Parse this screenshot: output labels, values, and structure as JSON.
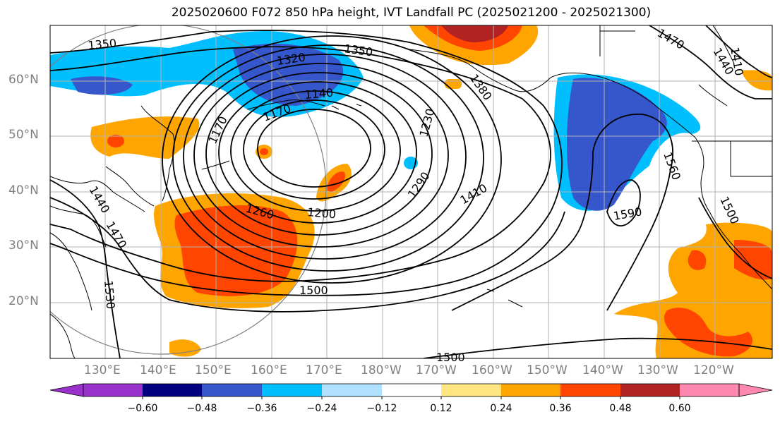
{
  "title": "2025020600 F072 850 hPa height, IVT Landfall PC (2025021200 - 2025021300)",
  "lat_labels": [
    "60°N",
    "50°N",
    "40°N",
    "30°N",
    "20°N"
  ],
  "lon_labels": [
    "130°E",
    "140°E",
    "150°E",
    "160°E",
    "170°E",
    "180°W",
    "170°W",
    "160°W",
    "150°W",
    "140°W",
    "130°W",
    "120°W"
  ],
  "contour_labels": [
    {
      "text": "1350"
    },
    {
      "text": "1320"
    },
    {
      "text": "1350"
    },
    {
      "text": "1140"
    },
    {
      "text": "1170"
    },
    {
      "text": "1170"
    },
    {
      "text": "1200"
    },
    {
      "text": "1260"
    },
    {
      "text": "1230"
    },
    {
      "text": "1290"
    },
    {
      "text": "1380"
    },
    {
      "text": "1410"
    },
    {
      "text": "1500"
    },
    {
      "text": "1530"
    },
    {
      "text": "1500"
    },
    {
      "text": "1560"
    },
    {
      "text": "1590"
    },
    {
      "text": "1500"
    },
    {
      "text": "1470"
    },
    {
      "text": "1440"
    },
    {
      "text": "1410"
    },
    {
      "text": "1440"
    },
    {
      "text": "1470"
    }
  ],
  "colorbar": {
    "ticks": [
      "−0.60",
      "−0.48",
      "−0.36",
      "−0.24",
      "−0.12",
      "0.12",
      "0.24",
      "0.36",
      "0.48",
      "0.60"
    ],
    "colors": [
      "#9932cc",
      "#000080",
      "#3657cc",
      "#00bfff",
      "#b0e0ff",
      "#ffffff",
      "#ffe680",
      "#ffa500",
      "#ff4500",
      "#b22222",
      "#ff88b0"
    ]
  },
  "colors": {
    "neg_strong": "#3657cc",
    "neg_mid": "#00bfff",
    "pos_mid": "#ffa500",
    "pos_strong": "#ff4500",
    "pos_very": "#b22222"
  }
}
